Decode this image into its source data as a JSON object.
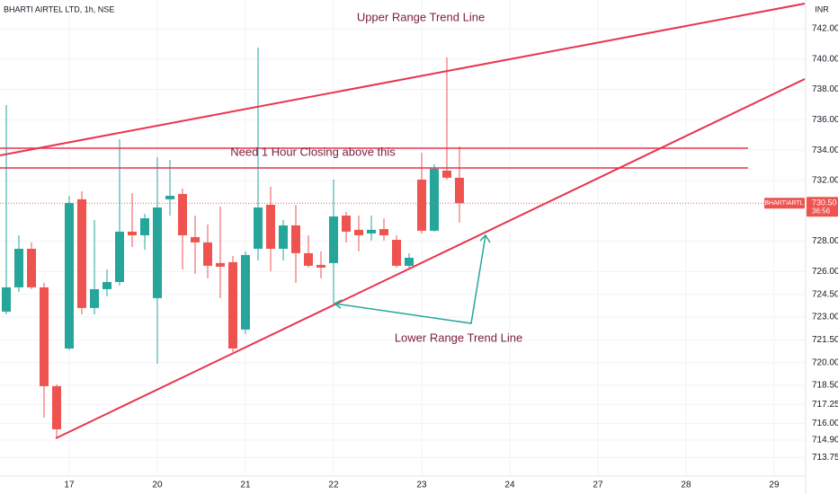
{
  "chart_data": {
    "type": "candlestick",
    "title": "BHARTI AIRTEL LTD, 1h, NSE",
    "currency": "INR",
    "symbol": "BHARTIARTL",
    "countdown": "36:56",
    "last_price": {
      "value": 730.5,
      "label": "730.50"
    },
    "up_color": "#26a69a",
    "down_color": "#ef5350",
    "grid": true,
    "annotations": [
      "Upper Range Trend Line",
      "Need 1 Hour Closing above this",
      "Lower Range Trend Line"
    ],
    "open": [
      723.36,
      724.96,
      727.5,
      724.96,
      718.45,
      720.93,
      730.76,
      723.6,
      724.84,
      725.31,
      728.63,
      728.39,
      724.25,
      730.76,
      731.11,
      728.27,
      727.92,
      726.56,
      726.62,
      722.18,
      727.5,
      730.4,
      727.5,
      729.04,
      727.21,
      726.44,
      726.56,
      729.69,
      728.75,
      728.51,
      728.8,
      728.09,
      726.38,
      732.06,
      728.69,
      732.65,
      732.18
    ],
    "high": [
      736.97,
      728.39,
      727.92,
      725.25,
      718.57,
      730.99,
      731.29,
      729.4,
      726.14,
      734.72,
      731.17,
      729.81,
      733.54,
      733.36,
      731.47,
      729.69,
      729.1,
      730.28,
      727.03,
      727.33,
      740.76,
      731.59,
      729.4,
      730.4,
      728.39,
      727.33,
      732.06,
      729.93,
      729.69,
      729.69,
      729.51,
      728.39,
      727.21,
      733.83,
      733.07,
      740.11,
      734.25
    ],
    "low": [
      723.18,
      724.66,
      724.84,
      716.38,
      715.02,
      720.82,
      723.18,
      723.18,
      724.37,
      725.08,
      727.62,
      727.44,
      719.93,
      729.69,
      726.14,
      725.85,
      725.55,
      724.25,
      720.7,
      721.88,
      726.73,
      726.02,
      726.73,
      725.25,
      726.26,
      725.55,
      723.89,
      727.92,
      727.33,
      728.04,
      728.04,
      726.26,
      726.26,
      728.51,
      728.63,
      732.06,
      729.22
    ],
    "close": [
      724.96,
      727.5,
      724.96,
      718.45,
      715.61,
      730.52,
      723.6,
      724.84,
      725.31,
      728.63,
      728.39,
      729.51,
      730.22,
      730.99,
      728.39,
      727.92,
      726.38,
      726.32,
      720.93,
      727.09,
      730.22,
      727.5,
      729.04,
      727.21,
      726.38,
      726.26,
      729.63,
      728.63,
      728.39,
      728.75,
      728.39,
      726.38,
      726.91,
      728.69,
      732.77,
      732.18,
      730.5
    ],
    "ylim": [
      712.53,
      743.89
    ],
    "yticks": [
      {
        "value": 742,
        "label": "742.00"
      },
      {
        "value": 740,
        "label": "740.00"
      },
      {
        "value": 738,
        "label": "738.00"
      },
      {
        "value": 736,
        "label": "736.00"
      },
      {
        "value": 734,
        "label": "734.00"
      },
      {
        "value": 732,
        "label": "732.00"
      },
      {
        "value": 728,
        "label": "728.00"
      },
      {
        "value": 726,
        "label": "726.00"
      },
      {
        "value": 724.5,
        "label": "724.50"
      },
      {
        "value": 723,
        "label": "723.00"
      },
      {
        "value": 721.5,
        "label": "721.50"
      },
      {
        "value": 720,
        "label": "720.00"
      },
      {
        "value": 718.5,
        "label": "718.50"
      },
      {
        "value": 717.25,
        "label": "717.25"
      },
      {
        "value": 716,
        "label": "716.00"
      },
      {
        "value": 714.9,
        "label": "714.90"
      },
      {
        "value": 713.75,
        "label": "713.75"
      }
    ],
    "xlim": [
      -0.5,
      63.43
    ],
    "xticks": [
      {
        "value": 5,
        "label": "17"
      },
      {
        "value": 12,
        "label": "20"
      },
      {
        "value": 19,
        "label": "21"
      },
      {
        "value": 26,
        "label": "22"
      },
      {
        "value": 33,
        "label": "23"
      },
      {
        "value": 40,
        "label": "24"
      },
      {
        "value": 47,
        "label": "27"
      },
      {
        "value": 54,
        "label": "28"
      },
      {
        "value": 61,
        "label": "29"
      }
    ]
  }
}
